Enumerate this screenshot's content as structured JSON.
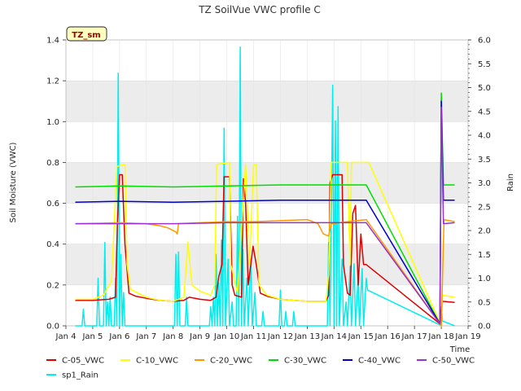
{
  "chart_data": {
    "type": "line",
    "title": "TZ SoilVue VWC profile C",
    "xlabel": "Time",
    "ylabel": "Soil Moisture (VWC)",
    "y2label": "Rain",
    "badge": "TZ_sm",
    "xlim": [
      4,
      19
    ],
    "ylim": [
      0,
      1.4
    ],
    "y2lim": [
      0,
      6.0
    ],
    "x_ticks": [
      {
        "v": 4,
        "label": "Jan 4"
      },
      {
        "v": 5,
        "label": "Jan 5"
      },
      {
        "v": 6,
        "label": "Jan 6"
      },
      {
        "v": 7,
        "label": "Jan 7"
      },
      {
        "v": 8,
        "label": "Jan 8"
      },
      {
        "v": 9,
        "label": "Jan 9"
      },
      {
        "v": 10,
        "label": "Jan 10"
      },
      {
        "v": 11,
        "label": "Jan 11"
      },
      {
        "v": 12,
        "label": "Jan 12"
      },
      {
        "v": 13,
        "label": "Jan 13"
      },
      {
        "v": 14,
        "label": "Jan 14"
      },
      {
        "v": 15,
        "label": "Jan 15"
      },
      {
        "v": 16,
        "label": "Jan 16"
      },
      {
        "v": 17,
        "label": "Jan 17"
      },
      {
        "v": 18,
        "label": "Jan 18"
      },
      {
        "v": 19,
        "label": "Jan 19"
      }
    ],
    "y_ticks": [
      {
        "v": 0.0,
        "label": "0.0"
      },
      {
        "v": 0.2,
        "label": "0.2"
      },
      {
        "v": 0.4,
        "label": "0.4"
      },
      {
        "v": 0.6,
        "label": "0.6"
      },
      {
        "v": 0.8,
        "label": "0.8"
      },
      {
        "v": 1.0,
        "label": "1.0"
      },
      {
        "v": 1.2,
        "label": "1.2"
      },
      {
        "v": 1.4,
        "label": "1.4"
      }
    ],
    "y2_ticks": [
      {
        "v": 0.0,
        "label": "0.0"
      },
      {
        "v": 0.5,
        "label": "0.5"
      },
      {
        "v": 1.0,
        "label": "1.0"
      },
      {
        "v": 1.5,
        "label": "1.5"
      },
      {
        "v": 2.0,
        "label": "2.0"
      },
      {
        "v": 2.5,
        "label": "2.5"
      },
      {
        "v": 3.0,
        "label": "3.0"
      },
      {
        "v": 3.5,
        "label": "3.5"
      },
      {
        "v": 4.0,
        "label": "4.0"
      },
      {
        "v": 4.5,
        "label": "4.5"
      },
      {
        "v": 5.0,
        "label": "5.0"
      },
      {
        "v": 5.5,
        "label": "5.5"
      },
      {
        "v": 6.0,
        "label": "6.0"
      }
    ],
    "bands": [
      [
        0.2,
        0.4
      ],
      [
        0.6,
        0.8
      ],
      [
        1.0,
        1.2
      ]
    ],
    "band_color": "#ececec",
    "grid": true,
    "legend_position": "bottom",
    "series": [
      {
        "name": "C-05_VWC",
        "color": "#dd0000",
        "axis": "left",
        "points": [
          [
            4.35,
            0.125
          ],
          [
            5.0,
            0.125
          ],
          [
            5.6,
            0.13
          ],
          [
            5.85,
            0.14
          ],
          [
            5.92,
            0.5
          ],
          [
            6.0,
            0.74
          ],
          [
            6.1,
            0.74
          ],
          [
            6.2,
            0.4
          ],
          [
            6.35,
            0.16
          ],
          [
            6.6,
            0.145
          ],
          [
            7.0,
            0.135
          ],
          [
            7.5,
            0.125
          ],
          [
            8.0,
            0.12
          ],
          [
            8.4,
            0.125
          ],
          [
            8.6,
            0.14
          ],
          [
            9.0,
            0.13
          ],
          [
            9.4,
            0.125
          ],
          [
            9.6,
            0.14
          ],
          [
            9.7,
            0.24
          ],
          [
            9.82,
            0.3
          ],
          [
            9.9,
            0.73
          ],
          [
            10.1,
            0.73
          ],
          [
            10.2,
            0.2
          ],
          [
            10.3,
            0.15
          ],
          [
            10.55,
            0.14
          ],
          [
            10.62,
            0.72
          ],
          [
            10.7,
            0.6
          ],
          [
            10.8,
            0.2
          ],
          [
            10.98,
            0.39
          ],
          [
            11.1,
            0.3
          ],
          [
            11.25,
            0.16
          ],
          [
            11.5,
            0.145
          ],
          [
            12.0,
            0.13
          ],
          [
            12.5,
            0.125
          ],
          [
            13.0,
            0.12
          ],
          [
            13.7,
            0.12
          ],
          [
            13.8,
            0.15
          ],
          [
            13.85,
            0.7
          ],
          [
            13.95,
            0.74
          ],
          [
            14.3,
            0.74
          ],
          [
            14.35,
            0.3
          ],
          [
            14.5,
            0.16
          ],
          [
            14.6,
            0.15
          ],
          [
            14.7,
            0.55
          ],
          [
            14.8,
            0.59
          ],
          [
            14.9,
            0.2
          ],
          [
            15.0,
            0.45
          ],
          [
            15.1,
            0.3
          ],
          [
            15.2,
            0.3
          ],
          [
            17.95,
            0.01
          ],
          [
            18.05,
            0.12
          ],
          [
            18.5,
            0.115
          ]
        ]
      },
      {
        "name": "C-10_VWC",
        "color": "#ffff00",
        "axis": "left",
        "points": [
          [
            4.35,
            0.13
          ],
          [
            5.0,
            0.13
          ],
          [
            5.4,
            0.15
          ],
          [
            5.7,
            0.22
          ],
          [
            5.9,
            0.78
          ],
          [
            6.2,
            0.79
          ],
          [
            6.28,
            0.3
          ],
          [
            6.4,
            0.18
          ],
          [
            7.0,
            0.14
          ],
          [
            7.5,
            0.125
          ],
          [
            8.0,
            0.12
          ],
          [
            8.4,
            0.14
          ],
          [
            8.55,
            0.41
          ],
          [
            8.7,
            0.2
          ],
          [
            9.0,
            0.17
          ],
          [
            9.4,
            0.15
          ],
          [
            9.55,
            0.2
          ],
          [
            9.62,
            0.79
          ],
          [
            10.1,
            0.8
          ],
          [
            10.15,
            0.3
          ],
          [
            10.4,
            0.16
          ],
          [
            10.7,
            0.79
          ],
          [
            10.85,
            0.3
          ],
          [
            11.0,
            0.79
          ],
          [
            11.1,
            0.79
          ],
          [
            11.2,
            0.2
          ],
          [
            11.5,
            0.15
          ],
          [
            12.0,
            0.13
          ],
          [
            12.5,
            0.125
          ],
          [
            13.0,
            0.12
          ],
          [
            13.7,
            0.12
          ],
          [
            13.8,
            0.25
          ],
          [
            13.9,
            0.8
          ],
          [
            14.5,
            0.8
          ],
          [
            14.6,
            0.3
          ],
          [
            14.65,
            0.8
          ],
          [
            15.3,
            0.8
          ],
          [
            18.0,
            0.0
          ],
          [
            18.05,
            0.15
          ],
          [
            18.5,
            0.14
          ]
        ]
      },
      {
        "name": "C-20_VWC",
        "color": "#ff9900",
        "axis": "left",
        "points": [
          [
            4.35,
            0.5
          ],
          [
            6.0,
            0.505
          ],
          [
            7.0,
            0.5
          ],
          [
            7.5,
            0.49
          ],
          [
            7.8,
            0.48
          ],
          [
            8.1,
            0.46
          ],
          [
            8.15,
            0.45
          ],
          [
            8.2,
            0.5
          ],
          [
            9.0,
            0.505
          ],
          [
            10.0,
            0.51
          ],
          [
            11.0,
            0.51
          ],
          [
            12.0,
            0.515
          ],
          [
            13.0,
            0.52
          ],
          [
            13.4,
            0.5
          ],
          [
            13.6,
            0.45
          ],
          [
            13.8,
            0.44
          ],
          [
            13.9,
            0.5
          ],
          [
            14.5,
            0.51
          ],
          [
            15.2,
            0.52
          ],
          [
            18.0,
            0.0
          ],
          [
            18.1,
            0.52
          ],
          [
            18.5,
            0.51
          ]
        ]
      },
      {
        "name": "C-30_VWC",
        "color": "#00dd00",
        "axis": "left",
        "points": [
          [
            4.35,
            0.68
          ],
          [
            6.0,
            0.685
          ],
          [
            8.0,
            0.68
          ],
          [
            10.0,
            0.685
          ],
          [
            12.0,
            0.69
          ],
          [
            14.0,
            0.69
          ],
          [
            15.2,
            0.69
          ],
          [
            17.95,
            0.01
          ],
          [
            18.0,
            1.14
          ],
          [
            18.08,
            0.69
          ],
          [
            18.5,
            0.69
          ]
        ]
      },
      {
        "name": "C-40_VWC",
        "color": "#0000cc",
        "axis": "left",
        "points": [
          [
            4.35,
            0.605
          ],
          [
            6.0,
            0.61
          ],
          [
            8.0,
            0.605
          ],
          [
            10.0,
            0.61
          ],
          [
            12.0,
            0.615
          ],
          [
            14.0,
            0.615
          ],
          [
            15.2,
            0.615
          ],
          [
            17.95,
            0.01
          ],
          [
            18.0,
            1.1
          ],
          [
            18.08,
            0.615
          ],
          [
            18.5,
            0.615
          ]
        ]
      },
      {
        "name": "C-50_VWC",
        "color": "#9933cc",
        "axis": "left",
        "points": [
          [
            4.35,
            0.5
          ],
          [
            6.0,
            0.5
          ],
          [
            8.0,
            0.5
          ],
          [
            10.0,
            0.505
          ],
          [
            12.0,
            0.505
          ],
          [
            14.0,
            0.505
          ],
          [
            15.2,
            0.505
          ],
          [
            17.95,
            0.01
          ],
          [
            18.0,
            1.07
          ],
          [
            18.08,
            0.5
          ],
          [
            18.5,
            0.505
          ]
        ]
      },
      {
        "name": "sp1_Rain",
        "color": "#00eeee",
        "axis": "right",
        "points": [
          [
            4.35,
            0
          ],
          [
            4.6,
            0
          ],
          [
            4.65,
            0.35
          ],
          [
            4.7,
            0
          ],
          [
            5.15,
            0
          ],
          [
            5.2,
            1.0
          ],
          [
            5.25,
            0
          ],
          [
            5.4,
            0
          ],
          [
            5.45,
            1.75
          ],
          [
            5.5,
            0
          ],
          [
            5.55,
            0.5
          ],
          [
            5.6,
            0
          ],
          [
            5.65,
            0.6
          ],
          [
            5.7,
            0
          ],
          [
            5.8,
            0
          ],
          [
            5.85,
            1.0
          ],
          [
            5.9,
            0
          ],
          [
            5.95,
            5.3
          ],
          [
            6.0,
            0
          ],
          [
            6.05,
            1.5
          ],
          [
            6.1,
            0
          ],
          [
            6.15,
            0.7
          ],
          [
            6.2,
            0
          ],
          [
            8.05,
            0
          ],
          [
            8.1,
            1.5
          ],
          [
            8.15,
            0
          ],
          [
            8.2,
            1.55
          ],
          [
            8.25,
            0
          ],
          [
            8.45,
            0
          ],
          [
            8.5,
            0.6
          ],
          [
            8.55,
            0
          ],
          [
            9.35,
            0
          ],
          [
            9.4,
            0.4
          ],
          [
            9.45,
            0
          ],
          [
            9.5,
            0.6
          ],
          [
            9.55,
            0
          ],
          [
            9.6,
            1.5
          ],
          [
            9.65,
            0
          ],
          [
            9.7,
            0.9
          ],
          [
            9.75,
            0
          ],
          [
            9.8,
            1.8
          ],
          [
            9.85,
            0
          ],
          [
            9.9,
            4.15
          ],
          [
            9.95,
            0
          ],
          [
            10.05,
            1.4
          ],
          [
            10.1,
            0
          ],
          [
            10.2,
            0.5
          ],
          [
            10.25,
            0
          ],
          [
            10.35,
            0
          ],
          [
            10.4,
            2.3
          ],
          [
            10.45,
            0
          ],
          [
            10.5,
            5.85
          ],
          [
            10.55,
            0
          ],
          [
            10.6,
            1.6
          ],
          [
            10.65,
            0
          ],
          [
            10.75,
            1.0
          ],
          [
            10.8,
            0
          ],
          [
            10.9,
            1.4
          ],
          [
            10.95,
            0
          ],
          [
            11.05,
            0.7
          ],
          [
            11.1,
            0
          ],
          [
            11.3,
            0
          ],
          [
            11.35,
            0.3
          ],
          [
            11.4,
            0
          ],
          [
            11.95,
            0
          ],
          [
            12.0,
            0.75
          ],
          [
            12.05,
            0
          ],
          [
            12.15,
            0
          ],
          [
            12.2,
            0.3
          ],
          [
            12.25,
            0
          ],
          [
            12.45,
            0
          ],
          [
            12.5,
            0.3
          ],
          [
            12.55,
            0
          ],
          [
            13.75,
            0
          ],
          [
            13.8,
            1.75
          ],
          [
            13.85,
            0
          ],
          [
            13.95,
            5.05
          ],
          [
            14.0,
            0
          ],
          [
            14.05,
            4.3
          ],
          [
            14.1,
            0
          ],
          [
            14.15,
            4.6
          ],
          [
            14.2,
            0
          ],
          [
            14.3,
            1.4
          ],
          [
            14.35,
            0
          ],
          [
            14.45,
            0.5
          ],
          [
            14.5,
            0
          ],
          [
            14.6,
            1.25
          ],
          [
            14.65,
            0
          ],
          [
            14.75,
            1.3
          ],
          [
            14.8,
            0
          ],
          [
            14.9,
            1.0
          ],
          [
            14.95,
            0
          ],
          [
            15.05,
            1.2
          ],
          [
            15.1,
            0
          ],
          [
            15.2,
            1.0
          ],
          [
            15.25,
            0.75
          ],
          [
            17.95,
            0.02
          ],
          [
            18.0,
            0.4
          ],
          [
            18.05,
            0.1
          ],
          [
            18.5,
            0.0
          ]
        ]
      }
    ]
  }
}
